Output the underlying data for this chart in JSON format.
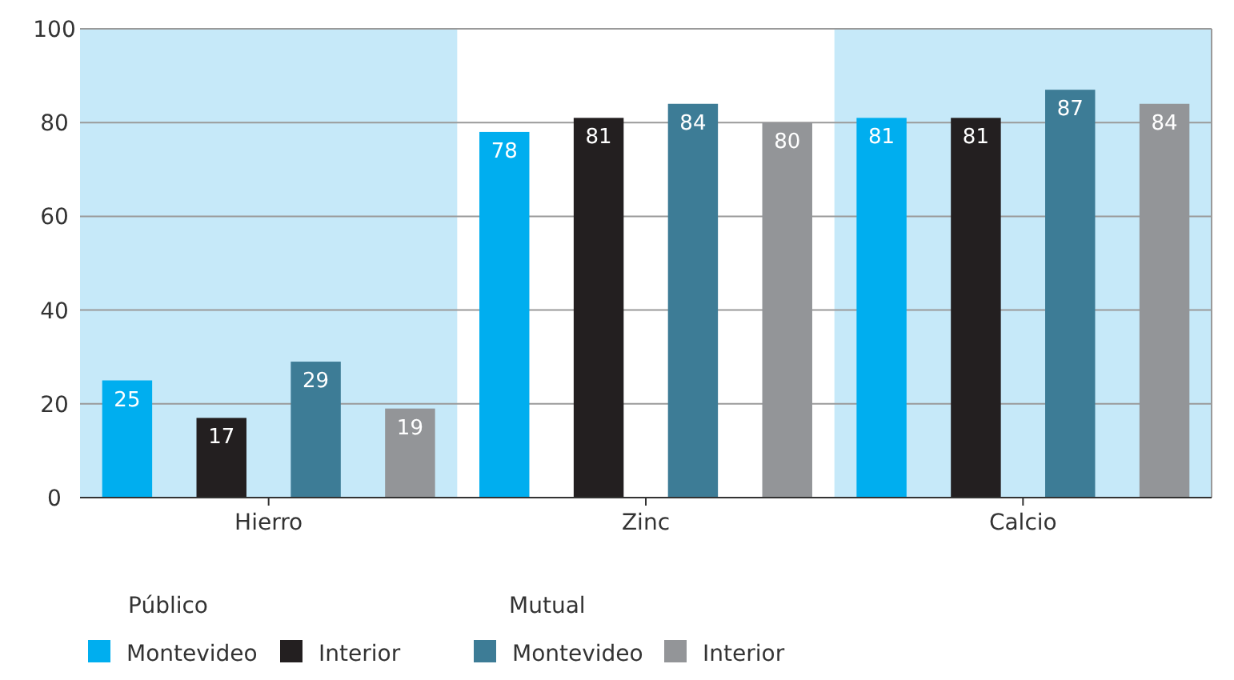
{
  "chart_data": {
    "type": "bar",
    "categories": [
      "Hierro",
      "Zinc",
      "Calcio"
    ],
    "series": [
      {
        "name": "Montevideo",
        "color": "#00aeef",
        "values": [
          25,
          78,
          81
        ]
      },
      {
        "name": "Interior",
        "color": "#231f20",
        "values": [
          17,
          81,
          81
        ]
      },
      {
        "name": "Montevideo",
        "color": "#3d7c96",
        "values": [
          29,
          84,
          87
        ]
      },
      {
        "name": "Interior",
        "color": "#939598",
        "values": [
          19,
          80,
          84
        ]
      }
    ],
    "ylim": [
      0,
      100
    ],
    "yticks": [
      0,
      20,
      40,
      60,
      80,
      100
    ],
    "grid": "y",
    "data_labels": true,
    "legend": "bottom left",
    "bands": [
      {
        "axis": "x",
        "from": "Hierro",
        "to": "Hierro",
        "color": "#c6e9f9"
      },
      {
        "axis": "x",
        "from": "Calcio",
        "to": "Calcio",
        "color": "#c6e9f9"
      }
    ],
    "annotations": [
      "Público",
      "Mutual"
    ]
  }
}
